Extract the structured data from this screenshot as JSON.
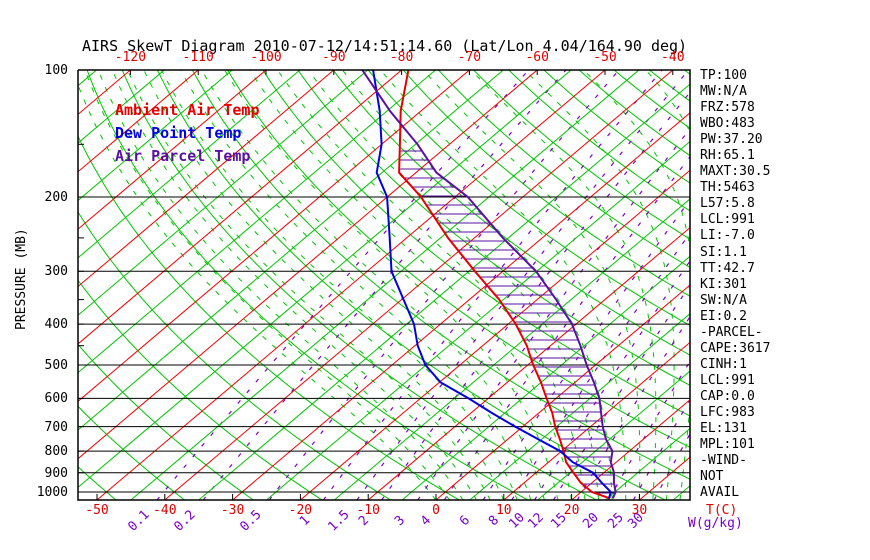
{
  "title": "AIRS SkewT Diagram 2010-07-12/14:51:14.60 (Lat/Lon 4.04/164.90 deg)",
  "legend": {
    "ambient": {
      "label": "Ambient Air Temp",
      "color": "#e80000"
    },
    "dew_point": {
      "label": "Dew Point Temp",
      "color": "#0000e0"
    },
    "parcel": {
      "label": "Air Parcel Temp",
      "color": "#5a10a0"
    }
  },
  "y_axis": {
    "title": "PRESSURE (MB)",
    "tick_labels": [
      "100",
      "200",
      "300",
      "400",
      "500",
      "600",
      "700",
      "800",
      "900",
      "1000"
    ],
    "minor_ticks_mb": [
      150,
      250,
      350,
      450
    ]
  },
  "x_axis_top": {
    "labels": [
      "-120",
      "-110",
      "-100",
      "-90",
      "-80",
      "-70",
      "-60",
      "-50",
      "-40"
    ],
    "color": "#e00000"
  },
  "x_axis_bottom": {
    "temp_labels": [
      "-50",
      "-40",
      "-30",
      "-20",
      "-10",
      "0",
      "10",
      "20",
      "30"
    ],
    "temp_unit": "T(C)",
    "temp_color": "#e00000",
    "mixing_labels": [
      "0.1",
      "0.2",
      "0.5",
      "1",
      "1.5",
      "2",
      "3",
      "4",
      "6",
      "8",
      "10",
      "12",
      "15",
      "20",
      "25",
      "30"
    ],
    "mixing_unit": "W(g/kg)",
    "mixing_color": "#7a00c8"
  },
  "stats": [
    "TP:100",
    "MW:N/A",
    "FRZ:578",
    "WBO:483",
    "PW:37.20",
    "RH:65.1",
    "MAXT:30.5",
    "TH:5463",
    "L57:5.8",
    "LCL:991",
    "LI:-7.0",
    "SI:1.1",
    "TT:42.7",
    "KI:301",
    "SW:N/A",
    "EI:0.2",
    "-PARCEL-",
    "CAPE:3617",
    "CINH:1",
    "LCL:991",
    "CAP:0.0",
    "LFC:983",
    "EL:131",
    "MPL:101",
    "-WIND-",
    "NOT",
    "AVAIL"
  ],
  "chart_data": {
    "type": "line",
    "subtype": "skewt-logp",
    "pressure_axis_mb": [
      100,
      200,
      300,
      400,
      500,
      600,
      700,
      800,
      900,
      1000
    ],
    "pressure_range_mb": [
      100,
      1045
    ],
    "isotherm_range_c": {
      "min": -120,
      "max": 40,
      "step": 10
    },
    "surface_temp_axis_c": [
      -50,
      30
    ],
    "mixing_ratio_lines_gkg": [
      0.1,
      0.2,
      0.5,
      1,
      1.5,
      2,
      3,
      4,
      6,
      8,
      10,
      12,
      15,
      20,
      25,
      30
    ],
    "grid_colors": {
      "isobar": "#000000",
      "isotherm": "#f20000",
      "intermediate_isotherm": "#00c400",
      "dry_adiabat": "#00c400",
      "moist_adiabat": "#00c400",
      "mixing_ratio": "#8000c8"
    },
    "series": [
      {
        "name": "Ambient Air Temp",
        "color": "#e80000",
        "points_p_t": [
          [
            100,
            -79.0
          ],
          [
            125,
            -73.0
          ],
          [
            150,
            -67.3
          ],
          [
            175,
            -62.5
          ],
          [
            200,
            -55.0
          ],
          [
            250,
            -43.9
          ],
          [
            300,
            -34.1
          ],
          [
            350,
            -25.6
          ],
          [
            400,
            -18.9
          ],
          [
            450,
            -13.5
          ],
          [
            500,
            -9.2
          ],
          [
            550,
            -5.0
          ],
          [
            600,
            -1.4
          ],
          [
            650,
            2.0
          ],
          [
            700,
            4.8
          ],
          [
            750,
            7.7
          ],
          [
            800,
            10.3
          ],
          [
            850,
            12.6
          ],
          [
            900,
            15.5
          ],
          [
            950,
            18.3
          ],
          [
            1000,
            21.6
          ],
          [
            1035,
            25.3
          ]
        ]
      },
      {
        "name": "Dew Point Temp",
        "color": "#0000e0",
        "points_p_t": [
          [
            100,
            -84.2
          ],
          [
            125,
            -76.1
          ],
          [
            150,
            -70.0
          ],
          [
            175,
            -65.8
          ],
          [
            200,
            -60.0
          ],
          [
            250,
            -52.5
          ],
          [
            300,
            -46.4
          ],
          [
            350,
            -39.7
          ],
          [
            400,
            -33.9
          ],
          [
            450,
            -29.6
          ],
          [
            500,
            -25.1
          ],
          [
            550,
            -19.8
          ],
          [
            600,
            -12.9
          ],
          [
            650,
            -6.9
          ],
          [
            700,
            -1.1
          ],
          [
            750,
            4.5
          ],
          [
            800,
            9.8
          ],
          [
            850,
            13.6
          ],
          [
            900,
            18.4
          ],
          [
            950,
            21.4
          ],
          [
            1000,
            24.4
          ],
          [
            1035,
            25.2
          ]
        ]
      },
      {
        "name": "Air Parcel Temp",
        "color": "#5a10a0",
        "points_p_t": [
          [
            100,
            -85.8
          ],
          [
            125,
            -74.6
          ],
          [
            150,
            -64.7
          ],
          [
            175,
            -57.0
          ],
          [
            200,
            -48.1
          ],
          [
            250,
            -35.8
          ],
          [
            300,
            -25.1
          ],
          [
            350,
            -17.2
          ],
          [
            400,
            -10.6
          ],
          [
            450,
            -5.6
          ],
          [
            500,
            -1.3
          ],
          [
            550,
            2.8
          ],
          [
            600,
            6.4
          ],
          [
            650,
            9.2
          ],
          [
            700,
            11.8
          ],
          [
            750,
            14.5
          ],
          [
            800,
            17.5
          ],
          [
            850,
            19.2
          ],
          [
            900,
            21.5
          ],
          [
            950,
            23.2
          ],
          [
            1000,
            25.1
          ],
          [
            1035,
            25.8
          ]
        ]
      }
    ],
    "cape_hatch_color": "#5a10a0",
    "legend_position": "upper-left"
  }
}
